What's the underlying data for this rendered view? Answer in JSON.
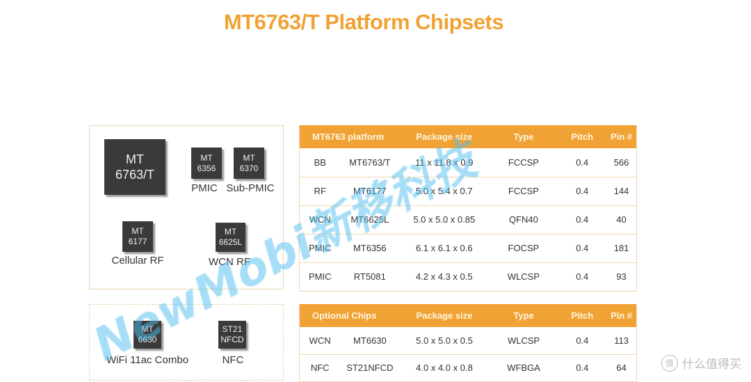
{
  "title": "MT6763/T Platform Chipsets",
  "diagram": {
    "main_chips": [
      {
        "line1": "MT",
        "line2": "6763/T"
      },
      {
        "line1": "MT",
        "line2": "6356",
        "label": "PMIC"
      },
      {
        "line1": "MT",
        "line2": "6370",
        "label": "Sub-PMIC"
      },
      {
        "line1": "MT",
        "line2": "6177",
        "label": "Cellular RF"
      },
      {
        "line1": "MT",
        "line2": "6625L",
        "label": "WCN RF"
      }
    ],
    "optional_chips": [
      {
        "line1": "MT",
        "line2": "6630",
        "label": "WiFi 11ac Combo"
      },
      {
        "line1": "ST21",
        "line2": "NFCD",
        "label": "NFC"
      }
    ]
  },
  "platform_table": {
    "headers": [
      "MT6763 platform",
      "",
      "Package size",
      "Type",
      "Pitch",
      "Pin  #"
    ],
    "rows": [
      [
        "BB",
        "MT6763/T",
        "11 x 11.8 x 0.9",
        "FCCSP",
        "0.4",
        "566"
      ],
      [
        "RF",
        "MT6177",
        "5.0  x 5.4 x 0.7",
        "FCCSP",
        "0.4",
        "144"
      ],
      [
        "WCN",
        "MT6625L",
        "5.0 x 5.0 x 0.85",
        "QFN40",
        "0.4",
        "40"
      ],
      [
        "PMIC",
        "MT6356",
        "6.1 x 6.1 x 0.6",
        "FOCSP",
        "0.4",
        "181"
      ],
      [
        "PMIC",
        "RT5081",
        "4.2 x 4.3 x 0.5",
        "WLCSP",
        "0.4",
        "93"
      ]
    ]
  },
  "optional_table": {
    "headers": [
      "Optional Chips",
      "",
      "Package size",
      "Type",
      "Pitch",
      "Pin  #"
    ],
    "rows": [
      [
        "WCN",
        "MT6630",
        "5.0 x 5.0 x 0.5",
        "WLCSP",
        "0.4",
        "113"
      ],
      [
        "NFC",
        "ST21NFCD",
        "4.0 x 4.0 x 0.8",
        "WFBGA",
        "0.4",
        "64"
      ]
    ]
  },
  "watermark": "NewMobi新移科技",
  "corner_watermark": {
    "icon": "值",
    "text": "什么值得买"
  },
  "colors": {
    "accent": "#f0a234",
    "border": "#e8d6ad",
    "chip": "#3a3a3a",
    "watermark": "#50bef0"
  }
}
